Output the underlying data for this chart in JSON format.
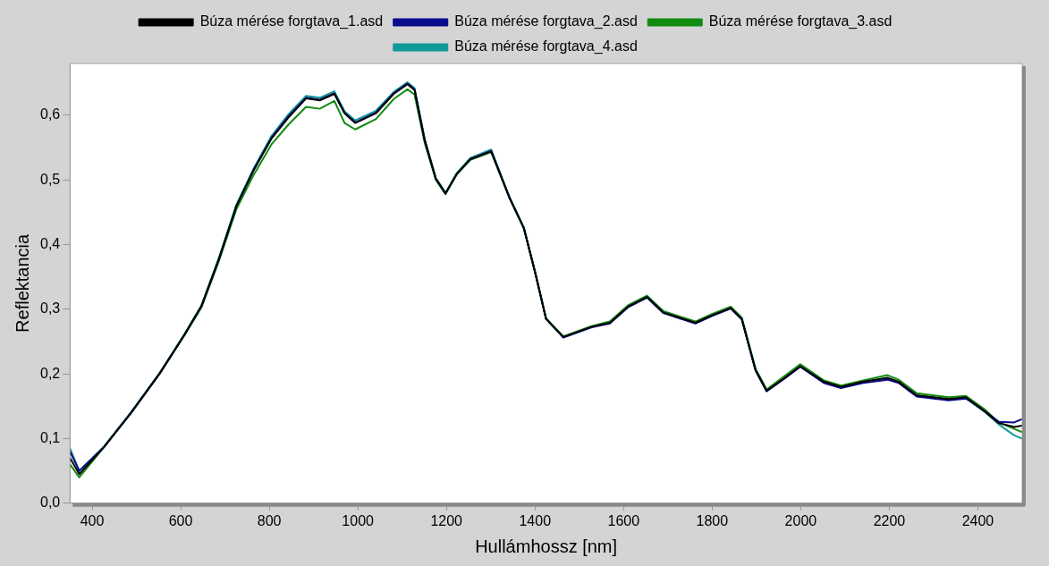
{
  "chart_data": {
    "type": "line",
    "xlabel": "Hullámhossz [nm]",
    "ylabel": "Reflektancia",
    "legend": "top",
    "marker": "none",
    "line_style": "solid",
    "grid": false,
    "xlim": [
      350,
      2500
    ],
    "xticks": [
      400,
      600,
      800,
      1000,
      1200,
      1400,
      1600,
      1800,
      2000,
      2200,
      2400
    ],
    "ylim": [
      0,
      0.68
    ],
    "yticks": [
      {
        "value": 0,
        "label": "0,0"
      },
      {
        "value": 0.1,
        "label": "0,1"
      },
      {
        "value": 0.2,
        "label": "0,2"
      },
      {
        "value": 0.3,
        "label": "0,3"
      },
      {
        "value": 0.4,
        "label": "0,4"
      },
      {
        "value": 0.5,
        "label": "0,5"
      },
      {
        "value": 0.6,
        "label": "0,6"
      }
    ],
    "x": [
      350,
      371,
      427,
      488,
      552,
      608,
      647,
      686,
      726,
      765,
      805,
      844,
      883,
      914,
      947,
      970,
      994,
      1041,
      1081,
      1112,
      1128,
      1151,
      1176,
      1198,
      1223,
      1254,
      1301,
      1342,
      1375,
      1400,
      1425,
      1464,
      1528,
      1569,
      1610,
      1653,
      1690,
      1762,
      1801,
      1842,
      1867,
      1898,
      1923,
      1964,
      1999,
      2052,
      2091,
      2141,
      2196,
      2221,
      2262,
      2334,
      2373,
      2414,
      2447,
      2482,
      2500
    ],
    "series": [
      {
        "name": "Búza mérése forgtava_1.asd",
        "color": "#000000",
        "values": [
          0.07,
          0.045,
          0.087,
          0.14,
          0.2,
          0.26,
          0.305,
          0.377,
          0.46,
          0.515,
          0.564,
          0.597,
          0.626,
          0.623,
          0.633,
          0.603,
          0.588,
          0.603,
          0.633,
          0.648,
          0.639,
          0.561,
          0.502,
          0.479,
          0.509,
          0.532,
          0.544,
          0.473,
          0.425,
          0.358,
          0.285,
          0.257,
          0.273,
          0.279,
          0.304,
          0.319,
          0.295,
          0.279,
          0.291,
          0.302,
          0.285,
          0.206,
          0.174,
          0.194,
          0.212,
          0.188,
          0.18,
          0.188,
          0.194,
          0.188,
          0.167,
          0.161,
          0.164,
          0.143,
          0.124,
          0.118,
          0.12
        ]
      },
      {
        "name": "Búza mérése forgtava_2.asd",
        "color": "#0a0a8c",
        "values": [
          0.08,
          0.05,
          0.087,
          0.14,
          0.2,
          0.26,
          0.305,
          0.377,
          0.46,
          0.516,
          0.565,
          0.599,
          0.627,
          0.624,
          0.634,
          0.604,
          0.589,
          0.604,
          0.634,
          0.649,
          0.64,
          0.561,
          0.502,
          0.479,
          0.509,
          0.532,
          0.545,
          0.473,
          0.425,
          0.358,
          0.285,
          0.256,
          0.272,
          0.278,
          0.303,
          0.318,
          0.294,
          0.278,
          0.29,
          0.301,
          0.284,
          0.205,
          0.173,
          0.193,
          0.211,
          0.186,
          0.178,
          0.186,
          0.191,
          0.186,
          0.165,
          0.159,
          0.162,
          0.143,
          0.126,
          0.125,
          0.13
        ]
      },
      {
        "name": "Búza mérése forgtava_3.asd",
        "color": "#118c11",
        "values": [
          0.06,
          0.04,
          0.087,
          0.14,
          0.2,
          0.259,
          0.303,
          0.374,
          0.455,
          0.508,
          0.555,
          0.586,
          0.613,
          0.61,
          0.622,
          0.588,
          0.578,
          0.594,
          0.625,
          0.64,
          0.632,
          0.557,
          0.5,
          0.478,
          0.508,
          0.531,
          0.543,
          0.473,
          0.425,
          0.358,
          0.286,
          0.258,
          0.274,
          0.281,
          0.306,
          0.321,
          0.297,
          0.281,
          0.293,
          0.304,
          0.287,
          0.208,
          0.176,
          0.197,
          0.215,
          0.19,
          0.182,
          0.19,
          0.198,
          0.191,
          0.17,
          0.164,
          0.166,
          0.146,
          0.125,
          0.115,
          0.11
        ]
      },
      {
        "name": "Búza mérése forgtava_4.asd",
        "color": "#119999",
        "values": [
          0.085,
          0.05,
          0.088,
          0.141,
          0.201,
          0.261,
          0.306,
          0.379,
          0.462,
          0.518,
          0.568,
          0.602,
          0.63,
          0.627,
          0.637,
          0.606,
          0.592,
          0.607,
          0.636,
          0.651,
          0.642,
          0.563,
          0.503,
          0.48,
          0.51,
          0.534,
          0.547,
          0.474,
          0.426,
          0.358,
          0.285,
          0.257,
          0.273,
          0.279,
          0.304,
          0.319,
          0.295,
          0.279,
          0.291,
          0.302,
          0.285,
          0.206,
          0.174,
          0.194,
          0.212,
          0.188,
          0.18,
          0.187,
          0.193,
          0.187,
          0.166,
          0.16,
          0.163,
          0.142,
          0.122,
          0.105,
          0.1
        ]
      }
    ]
  }
}
